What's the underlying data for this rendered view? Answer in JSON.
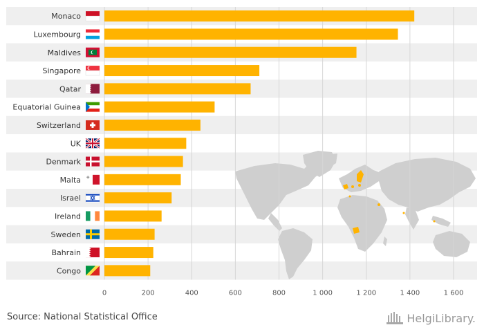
{
  "chart_data": {
    "type": "bar",
    "orientation": "horizontal",
    "categories": [
      "Monaco",
      "Luxembourg",
      "Maldives",
      "Singapore",
      "Qatar",
      "Equatorial Guinea",
      "Switzerland",
      "UK",
      "Denmark",
      "Malta",
      "Israel",
      "Ireland",
      "Sweden",
      "Bahrain",
      "Congo"
    ],
    "values": [
      1420,
      1345,
      1155,
      710,
      670,
      505,
      440,
      375,
      360,
      350,
      308,
      262,
      230,
      224,
      210
    ],
    "xlim": [
      0,
      1600
    ],
    "xticks": [
      0,
      200,
      400,
      600,
      800,
      1000,
      1200,
      1400,
      1600
    ],
    "xtick_labels": [
      "0",
      "200",
      "400",
      "600",
      "800",
      "1 000",
      "1 200",
      "1 400",
      "1 600"
    ],
    "grid": true,
    "bar_color": "#FFB300",
    "flag_icons": [
      "flag-monaco",
      "flag-luxembourg",
      "flag-maldives",
      "flag-singapore",
      "flag-qatar",
      "flag-equatorial-guinea",
      "flag-switzerland",
      "flag-uk",
      "flag-denmark",
      "flag-malta",
      "flag-israel",
      "flag-ireland",
      "flag-sweden",
      "flag-bahrain",
      "flag-congo"
    ],
    "map": {
      "icon": "world-map",
      "land_color": "#cfcfcf",
      "highlight_color": "#FFB300"
    }
  },
  "footer": {
    "source": "Source: National Statistical Office",
    "logo_text": "HelgiLibrary."
  }
}
